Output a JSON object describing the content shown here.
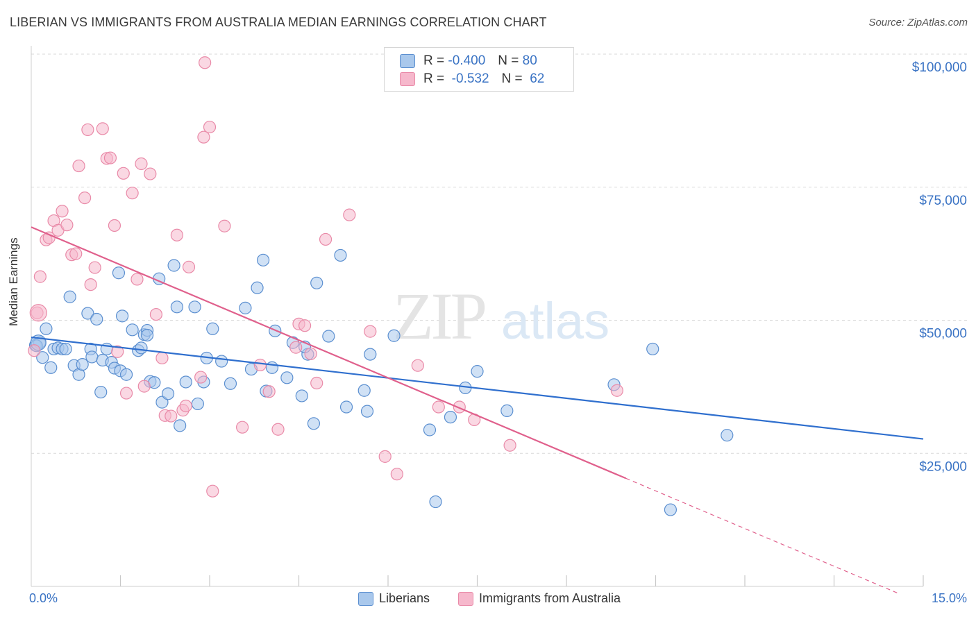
{
  "title": "LIBERIAN VS IMMIGRANTS FROM AUSTRALIA MEDIAN EARNINGS CORRELATION CHART",
  "source": "Source: ZipAtlas.com",
  "watermark": {
    "zip": "ZIP",
    "atlas": "atlas"
  },
  "legend_top": {
    "rows": [
      {
        "r_label": "R =",
        "r_value": "-0.400",
        "n_label": "N =",
        "n_value": "80"
      },
      {
        "r_label": "R =",
        "r_value": "-0.532",
        "n_label": "N =",
        "n_value": "62"
      }
    ]
  },
  "legend_bottom": {
    "items": [
      "Liberians",
      "Immigrants from Australia"
    ]
  },
  "colors": {
    "liberians_fill": "#a9c8ec",
    "liberians_stroke": "#5b8fd0",
    "liberians_line": "#2f6fce",
    "australia_fill": "#f6b8cc",
    "australia_stroke": "#e98aa8",
    "australia_line": "#e0608c",
    "axis_text": "#3a73c4",
    "grid": "#d9d9d9"
  },
  "chart_data": {
    "type": "scatter",
    "title": "LIBERIAN VS IMMIGRANTS FROM AUSTRALIA MEDIAN EARNINGS CORRELATION CHART",
    "xlabel": "",
    "ylabel": "Median Earnings",
    "xlim": [
      0,
      15
    ],
    "ylim": [
      0,
      100000
    ],
    "x_tick_labels": [
      "0.0%",
      "15.0%"
    ],
    "y_ticks": [
      25000,
      50000,
      75000,
      100000
    ],
    "y_tick_labels": [
      "$25,000",
      "$50,000",
      "$75,000",
      "$100,000"
    ],
    "grid": "horizontal dashed",
    "series": [
      {
        "name": "Liberians",
        "r": -0.4,
        "n": 80,
        "trend": {
          "x": [
            0.0,
            15.0
          ],
          "y": [
            46800,
            27700
          ]
        },
        "points": [
          [
            0.07,
            45300
          ],
          [
            0.14,
            45800
          ],
          [
            0.19,
            43000
          ],
          [
            0.25,
            48400
          ],
          [
            0.33,
            41100
          ],
          [
            0.38,
            44600
          ],
          [
            0.45,
            44800
          ],
          [
            0.52,
            44600
          ],
          [
            0.58,
            44600
          ],
          [
            0.65,
            54400
          ],
          [
            0.72,
            41500
          ],
          [
            0.8,
            39800
          ],
          [
            0.86,
            41700
          ],
          [
            0.95,
            51300
          ],
          [
            1.0,
            44600
          ],
          [
            1.02,
            43100
          ],
          [
            1.1,
            50200
          ],
          [
            1.17,
            36500
          ],
          [
            1.2,
            42500
          ],
          [
            1.27,
            44600
          ],
          [
            1.35,
            42100
          ],
          [
            1.4,
            41000
          ],
          [
            1.47,
            58900
          ],
          [
            1.5,
            40500
          ],
          [
            1.53,
            50800
          ],
          [
            1.6,
            39800
          ],
          [
            1.7,
            48200
          ],
          [
            1.8,
            44300
          ],
          [
            1.85,
            44800
          ],
          [
            1.9,
            47300
          ],
          [
            1.95,
            48100
          ],
          [
            2.0,
            38500
          ],
          [
            2.07,
            38300
          ],
          [
            2.15,
            57800
          ],
          [
            2.2,
            34600
          ],
          [
            2.3,
            36200
          ],
          [
            2.4,
            60300
          ],
          [
            2.45,
            52500
          ],
          [
            2.5,
            30200
          ],
          [
            2.6,
            38400
          ],
          [
            2.75,
            52500
          ],
          [
            2.8,
            34300
          ],
          [
            2.9,
            38400
          ],
          [
            2.95,
            42900
          ],
          [
            3.05,
            48400
          ],
          [
            3.2,
            42300
          ],
          [
            3.35,
            38100
          ],
          [
            3.6,
            52300
          ],
          [
            3.7,
            40800
          ],
          [
            3.8,
            56100
          ],
          [
            3.9,
            61300
          ],
          [
            3.95,
            36700
          ],
          [
            4.05,
            41100
          ],
          [
            4.1,
            48000
          ],
          [
            4.3,
            39200
          ],
          [
            4.4,
            45800
          ],
          [
            4.55,
            35800
          ],
          [
            4.65,
            43600
          ],
          [
            4.6,
            45000
          ],
          [
            4.75,
            30600
          ],
          [
            4.8,
            57000
          ],
          [
            5.0,
            47000
          ],
          [
            5.2,
            62200
          ],
          [
            5.3,
            33700
          ],
          [
            5.6,
            36800
          ],
          [
            5.65,
            32900
          ],
          [
            5.7,
            43600
          ],
          [
            6.1,
            47100
          ],
          [
            6.7,
            29400
          ],
          [
            6.8,
            15900
          ],
          [
            7.05,
            31800
          ],
          [
            7.3,
            37300
          ],
          [
            7.5,
            40400
          ],
          [
            8.0,
            33000
          ],
          [
            9.8,
            37900
          ],
          [
            10.45,
            44600
          ],
          [
            11.7,
            28400
          ],
          [
            10.75,
            14400
          ],
          [
            0.09,
            45200
          ],
          [
            1.95,
            47200
          ]
        ]
      },
      {
        "name": "Immigrants from Australia",
        "r": -0.532,
        "n": 62,
        "trend": {
          "solid": {
            "x": [
              0.0,
              10.0
            ],
            "y": [
              67500,
              20300
            ]
          },
          "dashed": {
            "x": [
              10.0,
              14.6
            ],
            "y": [
              20300,
              -1400
            ]
          }
        },
        "points": [
          [
            0.05,
            44300
          ],
          [
            0.1,
            51400
          ],
          [
            0.15,
            58200
          ],
          [
            0.25,
            65100
          ],
          [
            0.3,
            65500
          ],
          [
            0.38,
            68700
          ],
          [
            0.45,
            66900
          ],
          [
            0.52,
            70500
          ],
          [
            0.6,
            67900
          ],
          [
            0.68,
            62300
          ],
          [
            0.75,
            62500
          ],
          [
            0.8,
            79000
          ],
          [
            0.9,
            73000
          ],
          [
            0.95,
            85800
          ],
          [
            1.0,
            56700
          ],
          [
            1.07,
            59900
          ],
          [
            1.2,
            86000
          ],
          [
            1.27,
            80400
          ],
          [
            1.33,
            80500
          ],
          [
            1.4,
            67800
          ],
          [
            1.45,
            44100
          ],
          [
            1.55,
            77600
          ],
          [
            1.6,
            36300
          ],
          [
            1.7,
            73900
          ],
          [
            1.78,
            57700
          ],
          [
            1.85,
            79400
          ],
          [
            1.9,
            37600
          ],
          [
            2.0,
            77500
          ],
          [
            2.1,
            51100
          ],
          [
            2.2,
            42900
          ],
          [
            2.25,
            32100
          ],
          [
            2.35,
            32000
          ],
          [
            2.45,
            66000
          ],
          [
            2.55,
            33100
          ],
          [
            2.6,
            33900
          ],
          [
            2.65,
            60000
          ],
          [
            2.85,
            39300
          ],
          [
            2.9,
            84400
          ],
          [
            2.92,
            98400
          ],
          [
            3.0,
            86300
          ],
          [
            3.05,
            17900
          ],
          [
            3.25,
            67700
          ],
          [
            3.55,
            29900
          ],
          [
            3.85,
            41600
          ],
          [
            4.0,
            36600
          ],
          [
            4.15,
            29500
          ],
          [
            4.45,
            44900
          ],
          [
            4.5,
            49300
          ],
          [
            4.6,
            49000
          ],
          [
            4.7,
            43700
          ],
          [
            4.8,
            38200
          ],
          [
            4.95,
            65200
          ],
          [
            5.35,
            69800
          ],
          [
            5.7,
            47900
          ],
          [
            5.95,
            24400
          ],
          [
            6.15,
            21100
          ],
          [
            6.5,
            41500
          ],
          [
            6.85,
            33700
          ],
          [
            7.2,
            33700
          ],
          [
            7.45,
            31300
          ],
          [
            8.05,
            26500
          ],
          [
            9.85,
            36800
          ]
        ]
      }
    ]
  }
}
